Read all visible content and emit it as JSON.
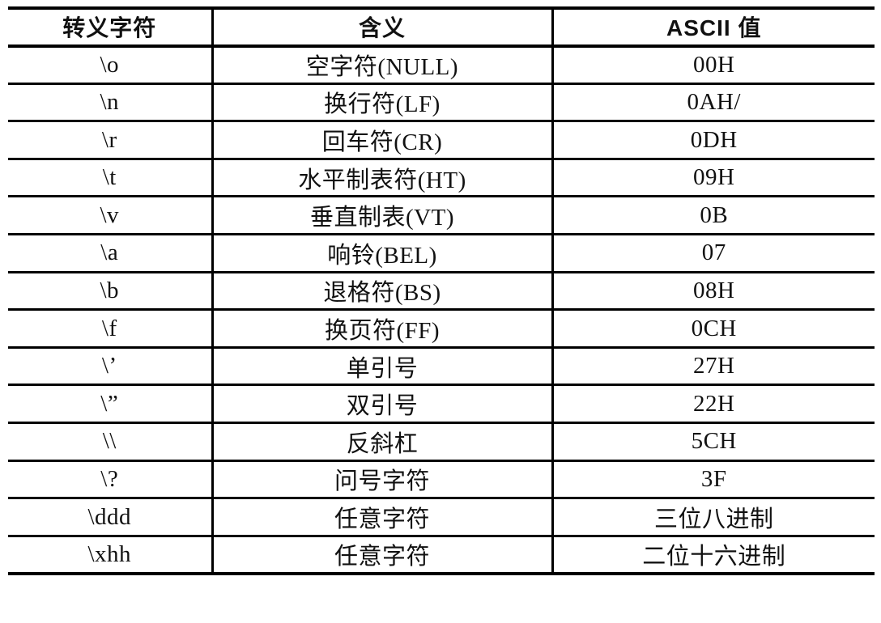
{
  "table": {
    "title": "escape-characters-reference",
    "columns": [
      {
        "label": "转义字符"
      },
      {
        "label": "含义"
      },
      {
        "label": "ASCII 值"
      }
    ],
    "rows": [
      [
        "\\o",
        "空字符(NULL)",
        "00H"
      ],
      [
        "\\n",
        "换行符(LF)",
        "0AH/"
      ],
      [
        "\\r",
        "回车符(CR)",
        "0DH"
      ],
      [
        "\\t",
        "水平制表符(HT)",
        "09H"
      ],
      [
        "\\v",
        "垂直制表(VT)",
        "0B"
      ],
      [
        "\\a",
        "响铃(BEL)",
        "07"
      ],
      [
        "\\b",
        "退格符(BS)",
        "08H"
      ],
      [
        "\\f",
        "换页符(FF)",
        "0CH"
      ],
      [
        "\\’",
        "单引号",
        "27H"
      ],
      [
        "\\”",
        "双引号",
        "22H"
      ],
      [
        "\\\\",
        "反斜杠",
        "5CH"
      ],
      [
        "\\?",
        "问号字符",
        "3F"
      ],
      [
        "\\ddd",
        "任意字符",
        "三位八进制"
      ],
      [
        "\\xhh",
        "任意字符",
        "二位十六进制"
      ]
    ],
    "style": {
      "border_color": "#000000",
      "text_color": "#111111",
      "background": "#ffffff"
    }
  }
}
